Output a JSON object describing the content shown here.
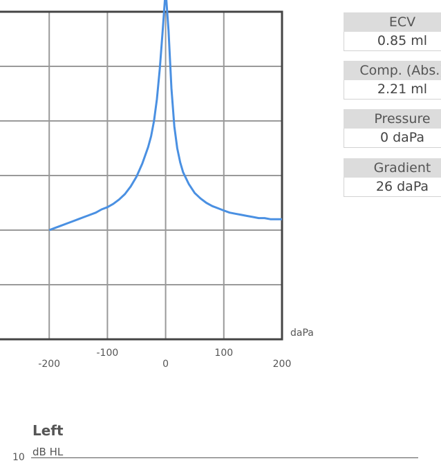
{
  "chart_data": {
    "type": "line",
    "xlabel": "daPa",
    "xlim": [
      -300,
      200
    ],
    "xticks": [
      -200,
      -100,
      0,
      100,
      200
    ],
    "xtick_labels": [
      "-200",
      "-100",
      "0",
      "100",
      "200"
    ],
    "ylim": [
      -0.5,
      2.5
    ],
    "grid": true,
    "series": [
      {
        "color": "#4a90e2",
        "x": [
          -200,
          -190,
          -180,
          -170,
          -160,
          -150,
          -140,
          -130,
          -120,
          -110,
          -100,
          -90,
          -80,
          -70,
          -60,
          -50,
          -40,
          -30,
          -25,
          -20,
          -15,
          -10,
          -5,
          0,
          5,
          10,
          15,
          20,
          25,
          30,
          40,
          50,
          60,
          70,
          80,
          90,
          100,
          110,
          120,
          130,
          140,
          150,
          160,
          170,
          180,
          190,
          200
        ],
        "y": [
          0.5,
          0.52,
          0.54,
          0.56,
          0.58,
          0.6,
          0.62,
          0.64,
          0.66,
          0.69,
          0.71,
          0.74,
          0.78,
          0.83,
          0.9,
          0.99,
          1.11,
          1.26,
          1.36,
          1.5,
          1.7,
          1.98,
          2.33,
          2.7,
          2.33,
          1.8,
          1.45,
          1.25,
          1.12,
          1.03,
          0.92,
          0.84,
          0.79,
          0.75,
          0.72,
          0.7,
          0.68,
          0.66,
          0.65,
          0.64,
          0.63,
          0.62,
          0.61,
          0.61,
          0.6,
          0.6,
          0.6
        ]
      }
    ]
  },
  "metrics": [
    {
      "label": "ECV",
      "value": "0.85 ml"
    },
    {
      "label": "Comp. (Abs.)",
      "value": "2.21 ml"
    },
    {
      "label": "Pressure",
      "value": "0 daPa"
    },
    {
      "label": "Gradient",
      "value": "26 daPa"
    }
  ],
  "left_section": {
    "title": "Left",
    "unit": "dB HL",
    "first_tick": "10"
  }
}
